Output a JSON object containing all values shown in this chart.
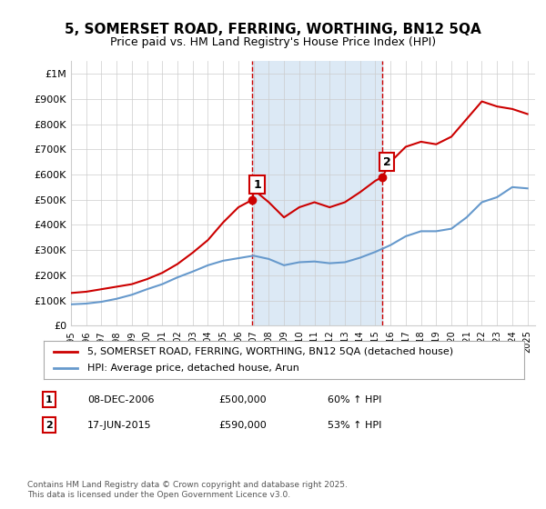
{
  "title": "5, SOMERSET ROAD, FERRING, WORTHING, BN12 5QA",
  "subtitle": "Price paid vs. HM Land Registry's House Price Index (HPI)",
  "legend_red": "5, SOMERSET ROAD, FERRING, WORTHING, BN12 5QA (detached house)",
  "legend_blue": "HPI: Average price, detached house, Arun",
  "footnote": "Contains HM Land Registry data © Crown copyright and database right 2025.\nThis data is licensed under the Open Government Licence v3.0.",
  "ylabel": "",
  "yticks": [
    0,
    100000,
    200000,
    300000,
    400000,
    500000,
    600000,
    700000,
    800000,
    900000,
    1000000
  ],
  "ytick_labels": [
    "£0",
    "£100K",
    "£200K",
    "£300K",
    "£400K",
    "£500K",
    "£600K",
    "£700K",
    "£800K",
    "£900K",
    "£1M"
  ],
  "xmin": 1995,
  "xmax": 2025.5,
  "ymin": 0,
  "ymax": 1050000,
  "marker1_x": 2006.93,
  "marker1_y": 500000,
  "marker1_label": "1",
  "marker1_date": "08-DEC-2006",
  "marker1_price": "£500,000",
  "marker1_hpi": "60% ↑ HPI",
  "marker2_x": 2015.46,
  "marker2_y": 590000,
  "marker2_label": "2",
  "marker2_date": "17-JUN-2015",
  "marker2_price": "£590,000",
  "marker2_hpi": "53% ↑ HPI",
  "red_color": "#cc0000",
  "blue_color": "#6699cc",
  "highlight_color": "#dce9f5",
  "vline_color": "#cc0000",
  "grid_color": "#cccccc",
  "bg_color": "#ffffff",
  "red_x": [
    1995,
    1996,
    1997,
    1998,
    1999,
    2000,
    2001,
    2002,
    2003,
    2004,
    2005,
    2006,
    2006.93,
    2007,
    2008,
    2009,
    2010,
    2011,
    2012,
    2013,
    2014,
    2015,
    2015.46,
    2016,
    2017,
    2018,
    2019,
    2020,
    2021,
    2022,
    2023,
    2024,
    2025
  ],
  "red_y": [
    130000,
    135000,
    145000,
    155000,
    165000,
    185000,
    210000,
    245000,
    290000,
    340000,
    410000,
    470000,
    500000,
    540000,
    490000,
    430000,
    470000,
    490000,
    470000,
    490000,
    530000,
    575000,
    590000,
    650000,
    710000,
    730000,
    720000,
    750000,
    820000,
    890000,
    870000,
    860000,
    840000
  ],
  "blue_x": [
    1995,
    1996,
    1997,
    1998,
    1999,
    2000,
    2001,
    2002,
    2003,
    2004,
    2005,
    2006,
    2007,
    2008,
    2009,
    2010,
    2011,
    2012,
    2013,
    2014,
    2015,
    2016,
    2017,
    2018,
    2019,
    2020,
    2021,
    2022,
    2023,
    2024,
    2025
  ],
  "blue_y": [
    85000,
    88000,
    95000,
    107000,
    123000,
    145000,
    165000,
    192000,
    215000,
    240000,
    258000,
    268000,
    278000,
    265000,
    240000,
    252000,
    255000,
    248000,
    252000,
    270000,
    293000,
    320000,
    355000,
    375000,
    375000,
    385000,
    430000,
    490000,
    510000,
    550000,
    545000
  ]
}
